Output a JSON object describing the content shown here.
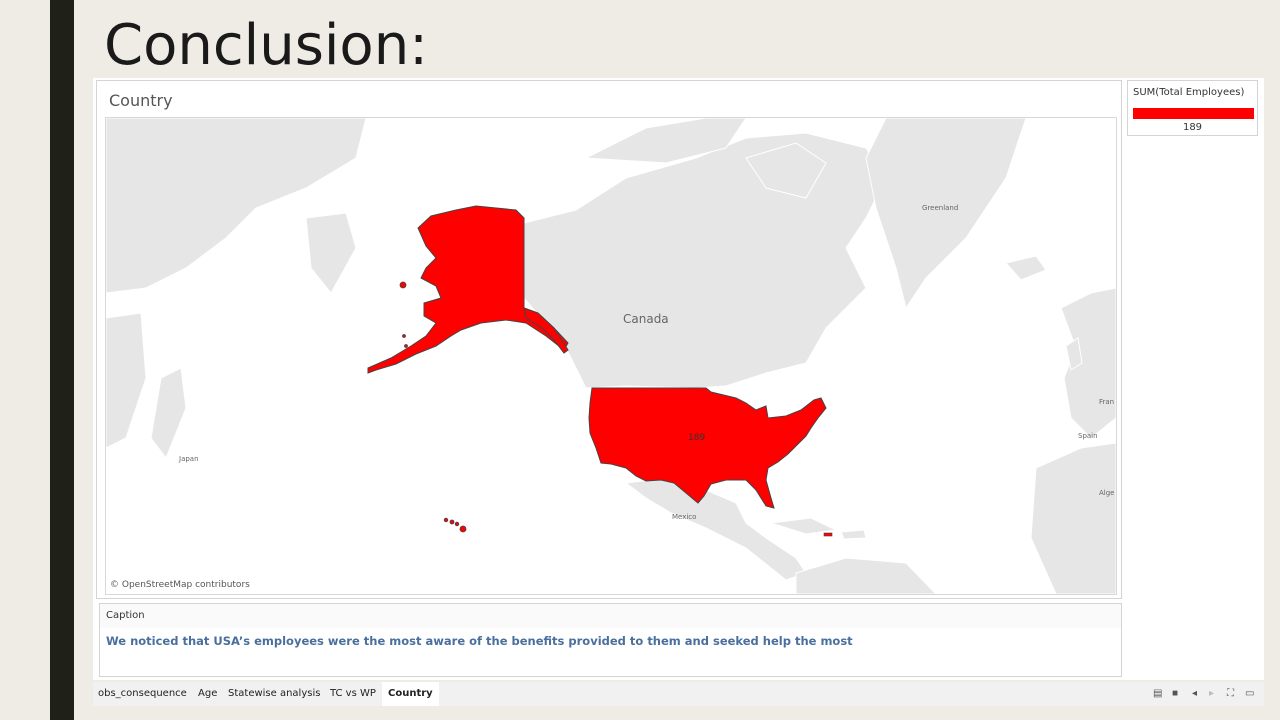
{
  "slide": {
    "title": "Conclusion:"
  },
  "sheet": {
    "title": "Country"
  },
  "map": {
    "labels": {
      "canada": "Canada",
      "greenland": "Greenland",
      "japan": "Japan",
      "mexico": "Mexico",
      "spain": "Spain",
      "france": "Fran",
      "algeria": "Alge"
    },
    "usa_value": "189",
    "attribution": "© OpenStreetMap contributors",
    "fill_color": "#ff0000"
  },
  "legend": {
    "title": "SUM(Total Employees)",
    "value": "189",
    "color": "#ff0000"
  },
  "caption": {
    "label": "Caption",
    "text": "We noticed that USA’s employees were the most aware of the benefits provided to them and seeked help the most"
  },
  "tabs": [
    {
      "label": "obs_consequence",
      "active": false
    },
    {
      "label": "Age",
      "active": false
    },
    {
      "label": "Statewise analysis",
      "active": false
    },
    {
      "label": "TC vs WP",
      "active": false
    },
    {
      "label": "Country",
      "active": true
    }
  ],
  "controls": {
    "grid_icon": "▤",
    "view_icon": "■",
    "prev_icon": "◂",
    "next_icon": "▸",
    "fullscreen_icon": "⛶",
    "present_icon": "▭"
  }
}
